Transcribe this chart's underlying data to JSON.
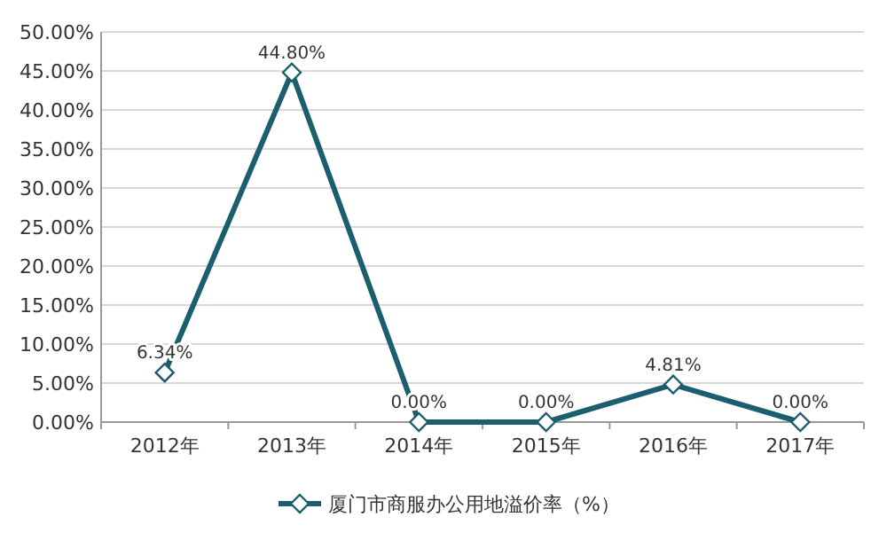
{
  "chart_data": {
    "type": "line",
    "categories": [
      "2012年",
      "2013年",
      "2014年",
      "2015年",
      "2016年",
      "2017年"
    ],
    "series": [
      {
        "name": "厦门市商服办公用地溢价率（%）",
        "color": "#1b5e6e",
        "values": [
          6.34,
          44.8,
          0,
          0,
          4.81,
          0
        ],
        "value_labels": [
          "6.34%",
          "44.80%",
          "0.00%",
          "0.00%",
          "4.81%",
          "0.00%"
        ]
      }
    ],
    "ylim": [
      0,
      50
    ],
    "yticks": [
      {
        "value": 0,
        "label": "0.00%"
      },
      {
        "value": 5,
        "label": "5.00%"
      },
      {
        "value": 10,
        "label": "10.00%"
      },
      {
        "value": 15,
        "label": "15.00%"
      },
      {
        "value": 20,
        "label": "20.00%"
      },
      {
        "value": 25,
        "label": "25.00%"
      },
      {
        "value": 30,
        "label": "30.00%"
      },
      {
        "value": 35,
        "label": "35.00%"
      },
      {
        "value": 40,
        "label": "40.00%"
      },
      {
        "value": 45,
        "label": "45.00%"
      },
      {
        "value": 50,
        "label": "50.00%"
      }
    ],
    "grid": "y",
    "legend": "bottom",
    "marker": "diamond"
  }
}
